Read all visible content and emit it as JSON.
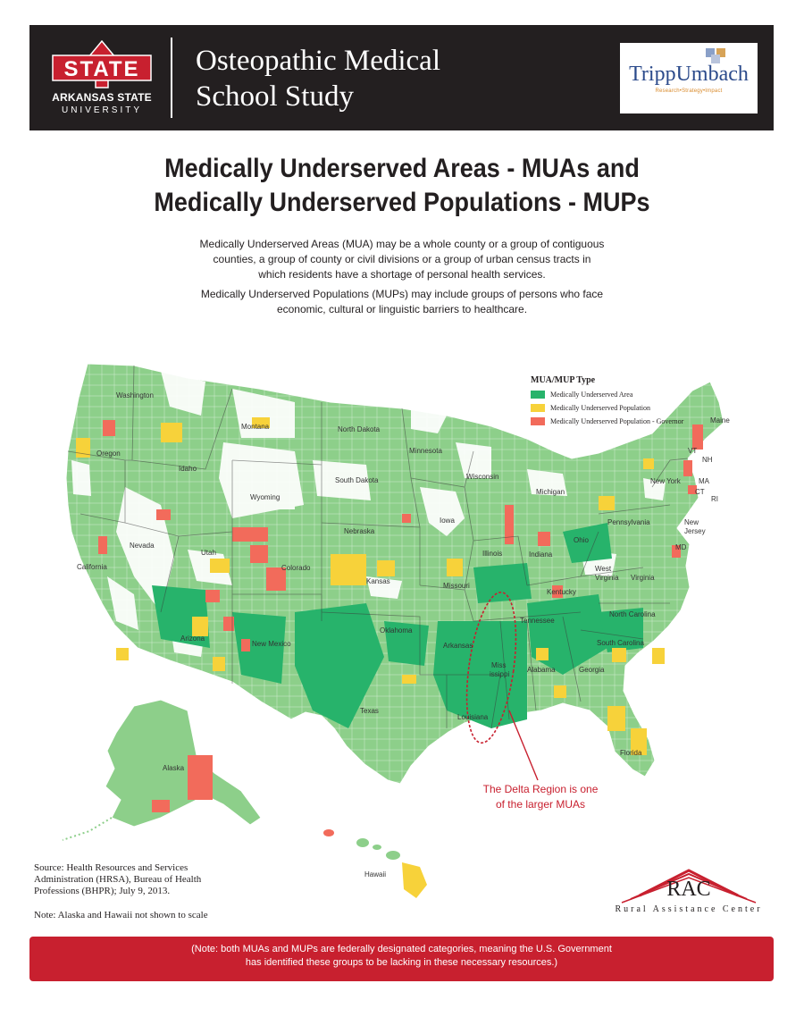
{
  "header": {
    "logo": {
      "wordmark": "STATE",
      "line1": "ARKANSAS STATE",
      "line2": "UNIVERSITY"
    },
    "study_title_line1": "Osteopathic Medical",
    "study_title_line2": "School Study",
    "partner": {
      "name": "TrippUmbach",
      "tagline": "Research•Strategy•Impact"
    }
  },
  "title_line1": "Medically Underserved Areas - MUAs and",
  "title_line2": "Medically Underserved Populations - MUPs",
  "desc1_line1": "Medically Underserved Areas (MUA) may be a whole county or a group of contiguous",
  "desc1_line2": "counties, a group of county or civil divisions or a group of urban census tracts in",
  "desc1_line3": "which residents have a shortage of personal health services.",
  "desc2_line1": "Medically Underserved Populations (MUPs) may include groups of persons who face",
  "desc2_line2": "economic, cultural or linguistic barriers to healthcare.",
  "map": {
    "legend_title": "MUA/MUP Type",
    "legend": [
      {
        "label": "Medically Underserved Area",
        "color": "#27b36b"
      },
      {
        "label": "Medically Underserved Population",
        "color": "#f7d23a"
      },
      {
        "label": "Medically Underserved Population - Governor",
        "color": "#f26b5b"
      }
    ],
    "base_color": "#8dcf8a",
    "states": {
      "washington": "Washington",
      "oregon": "Oregon",
      "california": "California",
      "nevada": "Nevada",
      "idaho": "Idaho",
      "montana": "Montana",
      "wyoming": "Wyoming",
      "utah": "Utah",
      "arizona": "Arizona",
      "colorado": "Colorado",
      "new_mexico": "New Mexico",
      "north_dakota": "North Dakota",
      "south_dakota": "South Dakota",
      "nebraska": "Nebraska",
      "kansas": "Kansas",
      "oklahoma": "Oklahoma",
      "texas": "Texas",
      "minnesota": "Minnesota",
      "iowa": "Iowa",
      "missouri": "Missouri",
      "arkansas": "Arkansas",
      "louisiana": "Louisiana",
      "wisconsin": "Wisconsin",
      "illinois": "Illinois",
      "michigan": "Michigan",
      "indiana": "Indiana",
      "ohio": "Ohio",
      "kentucky": "Kentucky",
      "tennessee": "Tennessee",
      "mississippi_line1": "Miss",
      "mississippi_line2": "issippi",
      "alabama": "Alabama",
      "georgia": "Georgia",
      "florida": "Florida",
      "south_carolina": "South Carolina",
      "north_carolina": "North Carolina",
      "virginia": "Virginia",
      "west_virginia_line1": "West",
      "west_virginia_line2": "Virginia",
      "pennsylvania": "Pennsylvania",
      "new_york": "New York",
      "maine": "Maine",
      "new_jersey_line1": "New",
      "new_jersey_line2": "Jersey",
      "md": "MD",
      "ma": "MA",
      "ct": "CT",
      "ri": "RI",
      "vt": "VT",
      "nh": "NH",
      "alaska": "Alaska",
      "hawaii": "Hawaii"
    },
    "delta_note_line1": "The Delta Region is one",
    "delta_note_line2": "of the larger MUAs"
  },
  "source": "Source: Health Resources and Services Administration (HRSA), Bureau of Health Professions (BHPR); July 9, 2013.",
  "note_scale": "Note: Alaska and Hawaii not shown to scale",
  "rac": {
    "mark": "RAC",
    "name": "Rural Assistance Center"
  },
  "footer_line1": "(Note: both MUAs and MUPs are federally designated categories, meaning the U.S. Government",
  "footer_line2": "has identified these groups to be lacking in these necessary resources.)"
}
